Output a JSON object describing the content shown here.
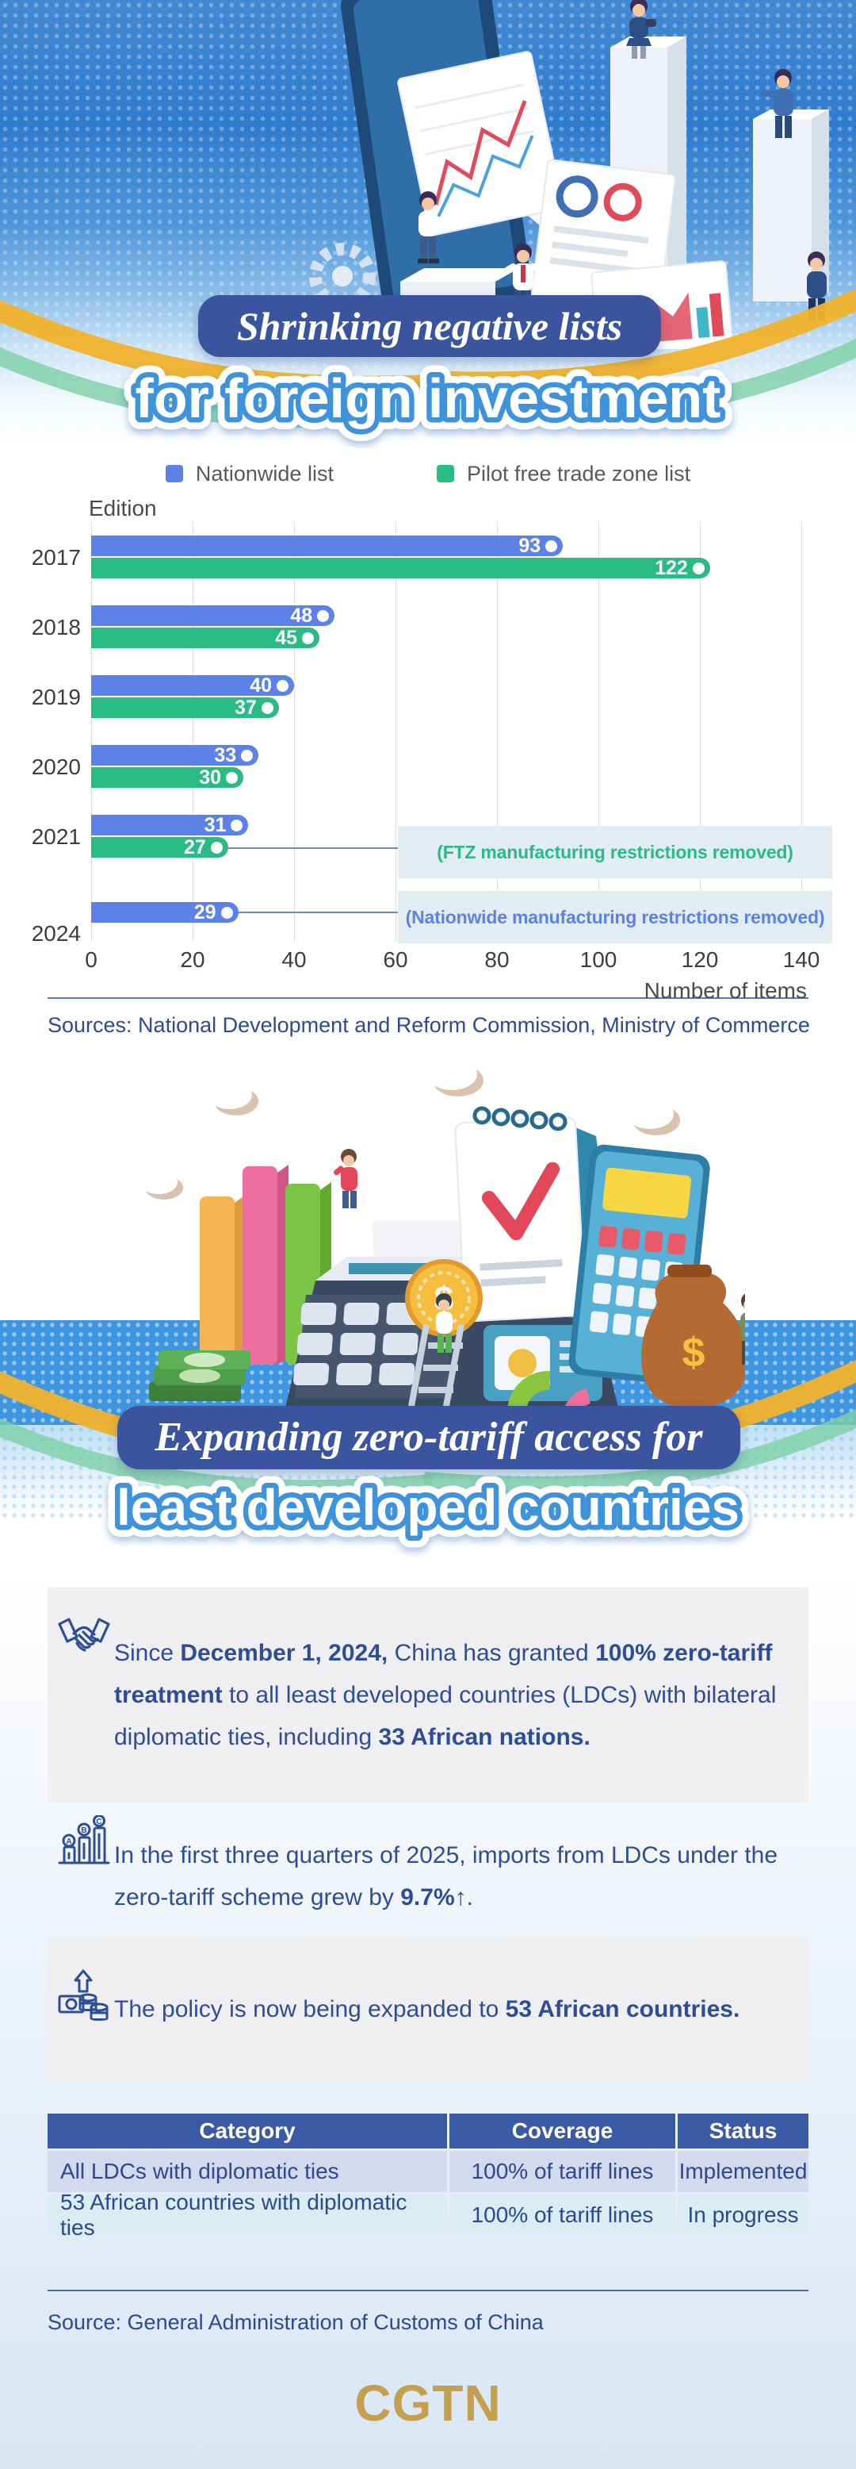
{
  "colors": {
    "accent_blue": "#5c82e8",
    "accent_green": "#2abb84",
    "banner_bg": "#3a559d",
    "outline_blue": "#3e93da",
    "text_blue": "#2d4d97",
    "table_header": "#3b5aa5",
    "table_row1": "#d4daee",
    "table_row2": "#d9edf2",
    "annotation_bg": "#e2ecf3",
    "gold": "#c2a04e"
  },
  "hero": {
    "title_line1": "Shrinking negative lists",
    "title_line2": "for foreign investment"
  },
  "chart": {
    "sources": "Sources: National Development and Reform Commission, Ministry of Commerce"
  },
  "chart_data": {
    "type": "bar",
    "orientation": "horizontal",
    "title": "Shrinking negative lists for foreign investment",
    "categories": [
      "2017",
      "2018",
      "2019",
      "2020",
      "2021",
      "2024"
    ],
    "series": [
      {
        "name": "Nationwide list",
        "color": "#5c82e8",
        "values": [
          93,
          48,
          40,
          33,
          31,
          29
        ]
      },
      {
        "name": "Pilot free trade zone list",
        "color": "#2abb84",
        "values": [
          122,
          45,
          37,
          30,
          27,
          null
        ]
      }
    ],
    "xlabel": "Number of items",
    "ylabel": "Edition",
    "xlim": [
      0,
      140
    ],
    "x_ticks": [
      0,
      20,
      40,
      60,
      80,
      100,
      120,
      140
    ],
    "grid": true,
    "legend_position": "top",
    "annotations": [
      {
        "text": "(FTZ manufacturing restrictions removed)",
        "color": "#2abb84",
        "category": "2021",
        "series": "Pilot free trade zone list"
      },
      {
        "text": "(Nationwide manufacturing restrictions removed)",
        "color": "#5c82e8",
        "category": "2024",
        "series": "Nationwide list"
      }
    ]
  },
  "section2": {
    "title_line1": "Expanding zero-tariff access for",
    "title_line2": "least developed countries",
    "blocks": [
      {
        "icon": "handshake-icon",
        "segments": [
          [
            "Since ",
            0
          ],
          [
            "December 1, 2024,",
            1
          ],
          [
            " China has granted ",
            0
          ],
          [
            "100% zero-tariff treatment",
            1
          ],
          [
            " to all least developed countries (LDCs) with bilateral diplomatic ties, including ",
            0
          ],
          [
            "33 African nations.",
            1
          ]
        ]
      },
      {
        "icon": "growth-chart-icon",
        "segments": [
          [
            "In the first three quarters of 2025, imports from LDCs under the zero-tariff scheme grew by ",
            0
          ],
          [
            "9.7%↑",
            1
          ],
          [
            ".",
            0
          ]
        ]
      },
      {
        "icon": "expansion-icon",
        "segments": [
          [
            "The policy is now being expanded to ",
            0
          ],
          [
            "53 African countries.",
            1
          ]
        ]
      }
    ],
    "table": {
      "headers": [
        "Category",
        "Coverage",
        "Status"
      ],
      "rows": [
        [
          "All LDCs with diplomatic ties",
          "100% of tariff lines",
          "Implemented"
        ],
        [
          "53 African countries with diplomatic ties",
          "100% of tariff lines",
          "In progress"
        ]
      ]
    },
    "source": "Source: General Administration of Customs of China"
  },
  "footer": {
    "logo": "CGTN"
  }
}
